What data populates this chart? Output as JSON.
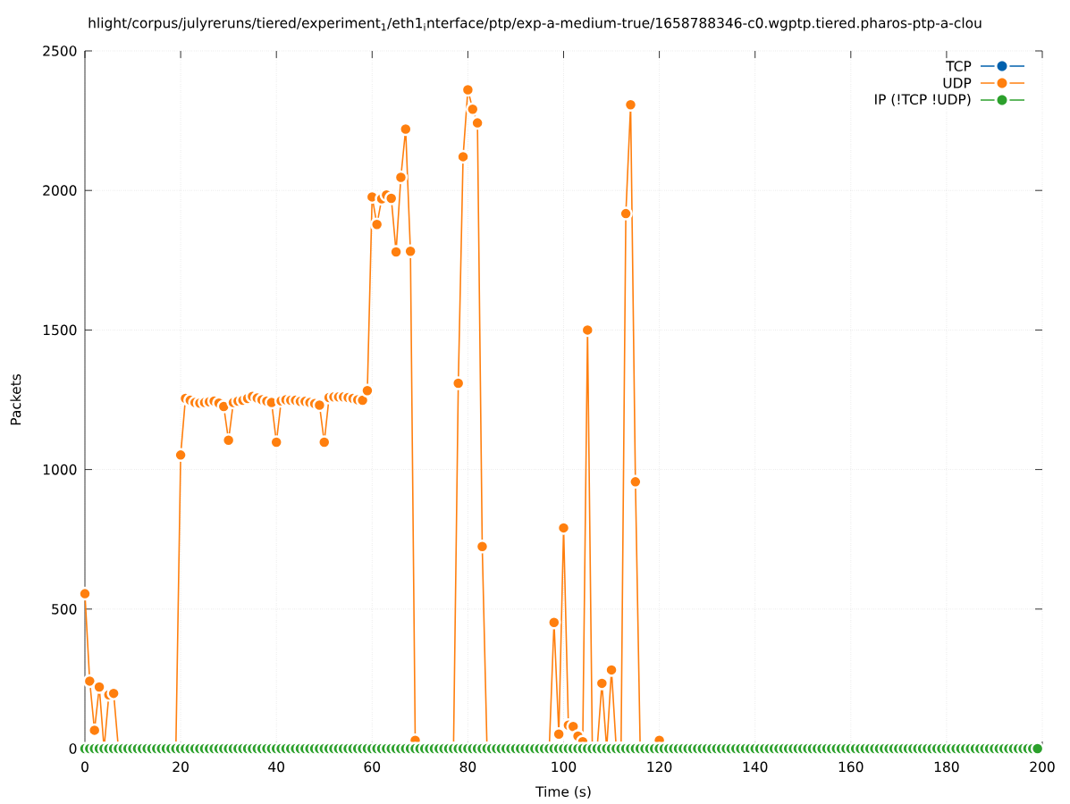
{
  "chart_data": {
    "type": "line",
    "title": "hlight/corpus/julyreruns/tiered/experiment$_{1}$/eth1$_{i}$nterface/ptp/exp-a-medium-true/1658788346-c0.wgptp.tiered.pharos-ptp-a-clou",
    "xlabel": "Time (s)",
    "ylabel": "Packets",
    "x": [
      0,
      1,
      2,
      3,
      4,
      5,
      6,
      7,
      8,
      9,
      10,
      11,
      12,
      13,
      14,
      15,
      16,
      17,
      18,
      19,
      20,
      21,
      22,
      23,
      24,
      25,
      26,
      27,
      28,
      29,
      30,
      31,
      32,
      33,
      34,
      35,
      36,
      37,
      38,
      39,
      40,
      41,
      42,
      43,
      44,
      45,
      46,
      47,
      48,
      49,
      50,
      51,
      52,
      53,
      54,
      55,
      56,
      57,
      58,
      59,
      60,
      61,
      62,
      63,
      64,
      65,
      66,
      67,
      68,
      69,
      70,
      71,
      72,
      73,
      74,
      75,
      76,
      77,
      78,
      79,
      80,
      81,
      82,
      83,
      84,
      85,
      86,
      87,
      88,
      89,
      90,
      91,
      92,
      93,
      94,
      95,
      96,
      97,
      98,
      99,
      100,
      101,
      102,
      103,
      104,
      105,
      106,
      107,
      108,
      109,
      110,
      111,
      112,
      113,
      114,
      115,
      116,
      117,
      118,
      119,
      120,
      121,
      122,
      123,
      124,
      125,
      126,
      127,
      128,
      129,
      130,
      131,
      132,
      133,
      134,
      135,
      136,
      137,
      138,
      139,
      140,
      141,
      142,
      143,
      144,
      145,
      146,
      147,
      148,
      149,
      150,
      151,
      152,
      153,
      154,
      155,
      156,
      157,
      158,
      159,
      160,
      161,
      162,
      163,
      164,
      165,
      166,
      167,
      168,
      169,
      170,
      171,
      172,
      173,
      174,
      175,
      176,
      177,
      178,
      179,
      180,
      181,
      182,
      183,
      184,
      185,
      186,
      187,
      188,
      189,
      190,
      191,
      192,
      193,
      194,
      195,
      196,
      197,
      198,
      199
    ],
    "series": [
      {
        "name": "TCP",
        "color": "#0060ad",
        "values": [
          null,
          null,
          null,
          null,
          null,
          null,
          null,
          null,
          null,
          null,
          null,
          null,
          null,
          null,
          null,
          null,
          null,
          null,
          null,
          null,
          null,
          null,
          null,
          null,
          null,
          null,
          null,
          null,
          null,
          null,
          null,
          null,
          null,
          null,
          null,
          null,
          null,
          null,
          null,
          null,
          null,
          null,
          null,
          null,
          null,
          null,
          null,
          null,
          null,
          null,
          null,
          null,
          null,
          null,
          null,
          null,
          null,
          null,
          null,
          null,
          null,
          null,
          null,
          null,
          null,
          null,
          null,
          null,
          null,
          null,
          null,
          null,
          null,
          null,
          null,
          null,
          null,
          null,
          null,
          null,
          null,
          null,
          null,
          null,
          null,
          null,
          null,
          null,
          null,
          null,
          null,
          null,
          null,
          null,
          null,
          null,
          null,
          null,
          null,
          null,
          null,
          null,
          null,
          null,
          null,
          null,
          null,
          null,
          null,
          null,
          null,
          null,
          null,
          null,
          null,
          null,
          null,
          null,
          null,
          null,
          null,
          null,
          null,
          null,
          null,
          null,
          null,
          null,
          null,
          null,
          null,
          null,
          null,
          null,
          null,
          null,
          null,
          null,
          null,
          null,
          null,
          null,
          null,
          null,
          null,
          null,
          null,
          null,
          null,
          null,
          null,
          null,
          null,
          null,
          null,
          null,
          null,
          null,
          null,
          null,
          null,
          null,
          null,
          null,
          null,
          null,
          null,
          null,
          null,
          null,
          null,
          null,
          null,
          null,
          null,
          null,
          null,
          null,
          null,
          null,
          null,
          null,
          null,
          null,
          null,
          null,
          null,
          null,
          null,
          null,
          null,
          null,
          null,
          null,
          null,
          null,
          null,
          null,
          null,
          null
        ]
      },
      {
        "name": "UDP",
        "color": "#ff7f0e",
        "values": [
          555,
          242,
          66,
          221,
          0,
          193,
          198,
          0,
          null,
          null,
          null,
          null,
          null,
          null,
          null,
          null,
          null,
          null,
          null,
          0,
          1052,
          1255,
          1248,
          1240,
          1238,
          1240,
          1243,
          1245,
          1238,
          1226,
          1105,
          1240,
          1245,
          1248,
          1255,
          1262,
          1256,
          1250,
          1245,
          1240,
          1098,
          1246,
          1250,
          1248,
          1248,
          1244,
          1244,
          1240,
          1236,
          1231,
          1098,
          1258,
          1260,
          1260,
          1260,
          1258,
          1255,
          1250,
          1248,
          1283,
          1977,
          1878,
          1970,
          1984,
          1972,
          1780,
          2047,
          2220,
          1782,
          30,
          null,
          null,
          null,
          null,
          null,
          null,
          null,
          0,
          1309,
          2121,
          2361,
          2291,
          2242,
          724,
          0,
          null,
          null,
          null,
          null,
          null,
          null,
          null,
          null,
          null,
          null,
          null,
          null,
          0,
          452,
          52,
          791,
          84,
          79,
          45,
          25,
          1500,
          0,
          0,
          234,
          0,
          282,
          0,
          0,
          1917,
          2307,
          956,
          0,
          null,
          null,
          null,
          30,
          null,
          null,
          null,
          null,
          null,
          null,
          null,
          null,
          null,
          null,
          null,
          null,
          null,
          null,
          null,
          null,
          null,
          null,
          null,
          null,
          null,
          null,
          null,
          null,
          null,
          null,
          null,
          null,
          null,
          null,
          null,
          null,
          null,
          null,
          null,
          null,
          null,
          null,
          null,
          null,
          null,
          null,
          null,
          null,
          null,
          null,
          null,
          null,
          null,
          null,
          null,
          null,
          null,
          null,
          null,
          null,
          null,
          null,
          null,
          null,
          null,
          null,
          null,
          null,
          null,
          null,
          null,
          null,
          null,
          null,
          null,
          null,
          null,
          null,
          null,
          null,
          null,
          null,
          null
        ]
      },
      {
        "name": "IP (!TCP  !UDP)",
        "color": "#2ca02c",
        "type": "scatter",
        "values": [
          0,
          0,
          0,
          0,
          0,
          0,
          0,
          0,
          0,
          0,
          0,
          0,
          0,
          0,
          0,
          0,
          0,
          0,
          0,
          0,
          0,
          0,
          0,
          0,
          0,
          0,
          0,
          0,
          0,
          0,
          0,
          0,
          0,
          0,
          0,
          0,
          0,
          0,
          0,
          0,
          0,
          0,
          0,
          0,
          0,
          0,
          0,
          0,
          0,
          0,
          0,
          0,
          0,
          0,
          0,
          0,
          0,
          0,
          0,
          0,
          0,
          0,
          0,
          0,
          0,
          0,
          0,
          0,
          0,
          0,
          0,
          0,
          0,
          0,
          0,
          0,
          0,
          0,
          0,
          0,
          0,
          0,
          0,
          0,
          0,
          0,
          0,
          0,
          0,
          0,
          0,
          0,
          0,
          0,
          0,
          0,
          0,
          0,
          0,
          0,
          0,
          0,
          0,
          0,
          0,
          0,
          0,
          0,
          0,
          0,
          0,
          0,
          0,
          0,
          0,
          0,
          0,
          0,
          0,
          0,
          0,
          0,
          0,
          0,
          0,
          0,
          0,
          0,
          0,
          0,
          0,
          0,
          0,
          0,
          0,
          0,
          0,
          0,
          0,
          0,
          0,
          0,
          0,
          0,
          0,
          0,
          0,
          0,
          0,
          0,
          0,
          0,
          0,
          0,
          0,
          0,
          0,
          0,
          0,
          0,
          0,
          0,
          0,
          0,
          0,
          0,
          0,
          0,
          0,
          0,
          0,
          0,
          0,
          0,
          0,
          0,
          0,
          0,
          0,
          0,
          0,
          0,
          0,
          0,
          0,
          0,
          0,
          0,
          0,
          0,
          0,
          0,
          0,
          0,
          0,
          0,
          0,
          0,
          0,
          0
        ]
      }
    ],
    "xlim": [
      0,
      200
    ],
    "ylim": [
      0,
      2500
    ],
    "xticks": [
      0,
      20,
      40,
      60,
      80,
      100,
      120,
      140,
      160,
      180,
      200
    ],
    "yticks": [
      0,
      500,
      1000,
      1500,
      2000,
      2500
    ],
    "grid": true,
    "legend": "top right",
    "marker": "circle",
    "line_style": "solid"
  }
}
